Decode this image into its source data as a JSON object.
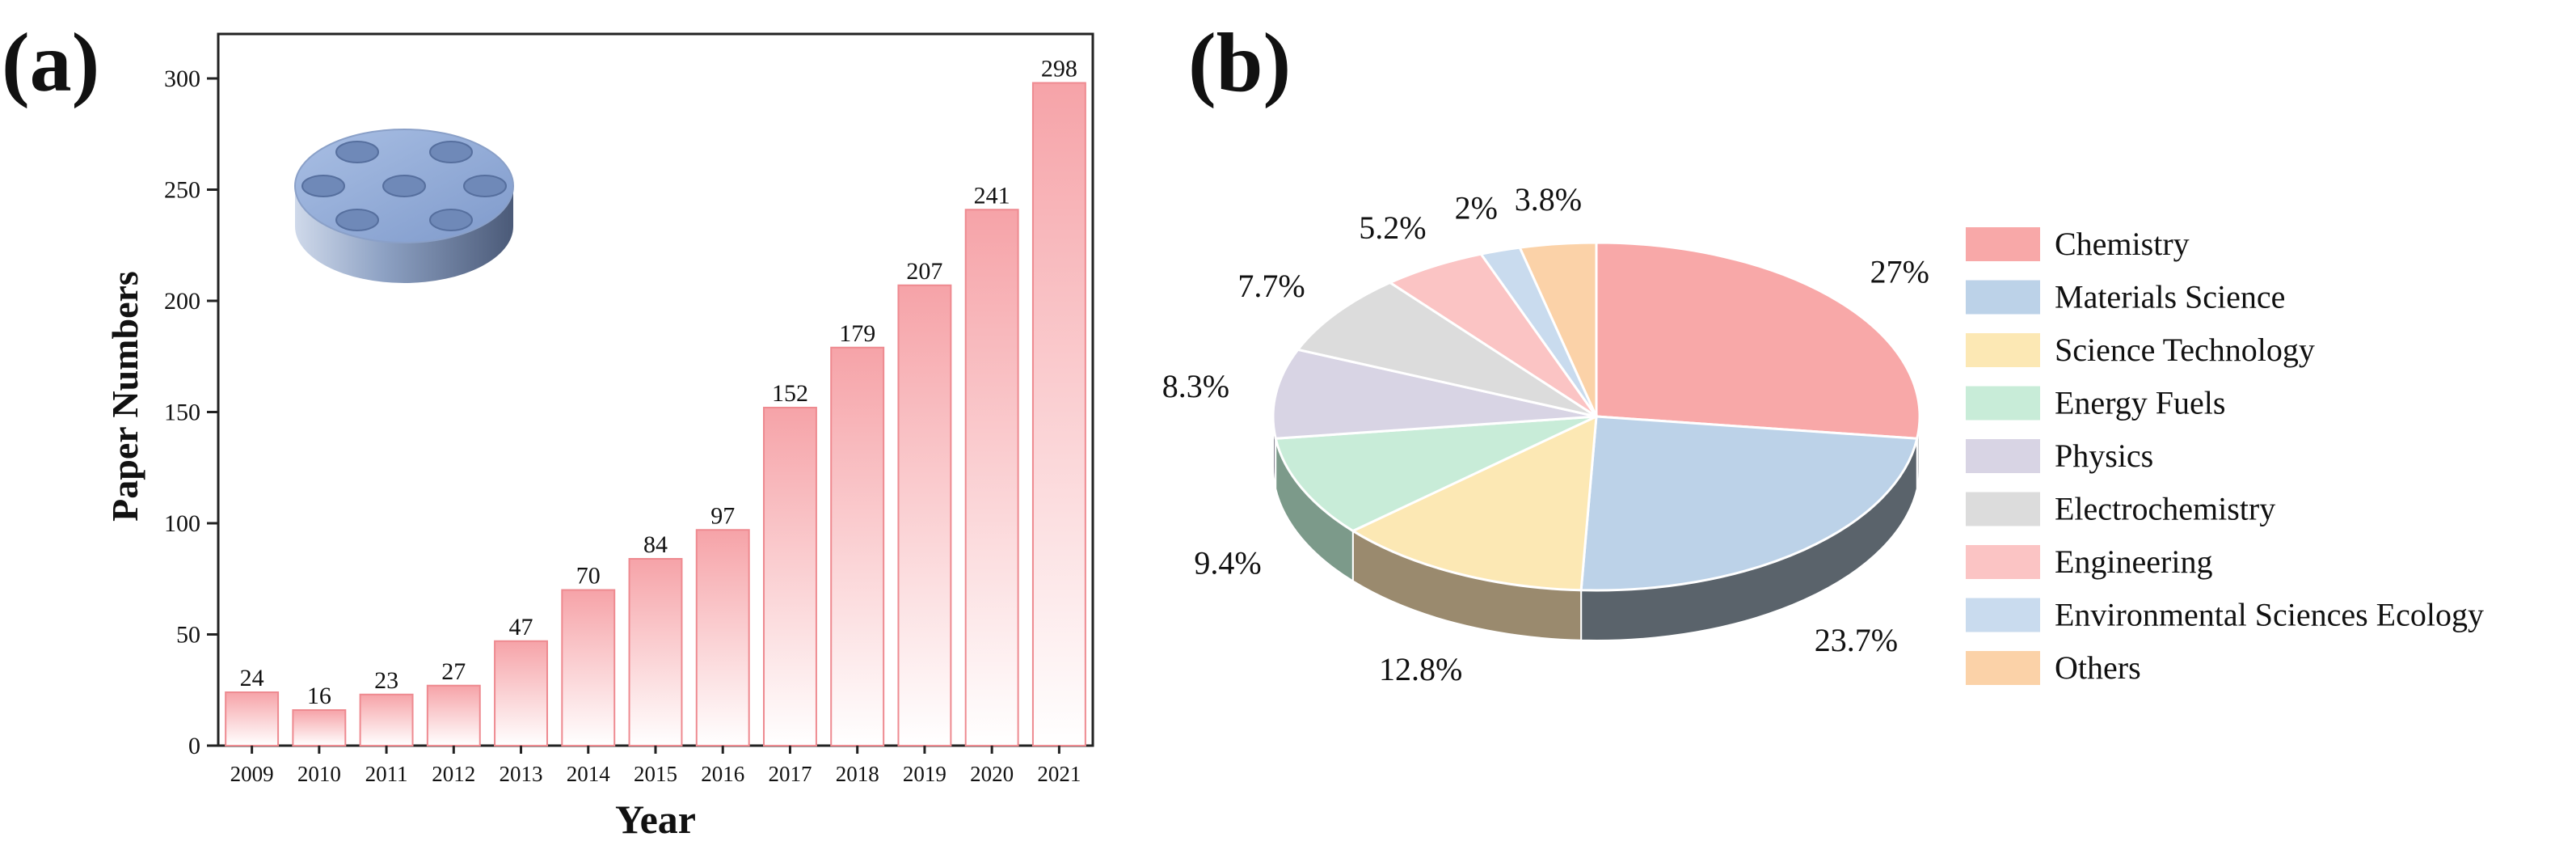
{
  "chart_data": [
    {
      "type": "bar",
      "panel_label": "(a)",
      "xlabel": "Year",
      "ylabel": "Paper Numbers",
      "ylim": [
        0,
        320
      ],
      "yticks": [
        0,
        50,
        100,
        150,
        200,
        250,
        300
      ],
      "categories": [
        "2009",
        "2010",
        "2011",
        "2012",
        "2013",
        "2014",
        "2015",
        "2016",
        "2017",
        "2018",
        "2019",
        "2020",
        "2021"
      ],
      "values": [
        24,
        16,
        23,
        27,
        47,
        70,
        84,
        97,
        152,
        179,
        207,
        241,
        298
      ],
      "bar_color_top": "#f6a3a8",
      "bar_color_bottom": "#ffffff",
      "bar_edge_color": "#ee8a90",
      "inset_icon": "perforated-disc-icon"
    },
    {
      "type": "pie",
      "panel_label": "(b)",
      "style": "3d",
      "slices": [
        {
          "label": "Chemistry",
          "value": 27,
          "value_label": "27%",
          "color": "#f8a8a8",
          "side_color": "#c7c9cc"
        },
        {
          "label": "Materials Science",
          "value": 23.7,
          "value_label": "23.7%",
          "color": "#bcd2e8",
          "side_color": "#5a636b"
        },
        {
          "label": "Science Technology",
          "value": 12.8,
          "value_label": "12.8%",
          "color": "#fce8b4",
          "side_color": "#9a8a6e"
        },
        {
          "label": "Energy Fuels",
          "value": 9.4,
          "value_label": "9.4%",
          "color": "#c8ecd8",
          "side_color": "#7c9a8a"
        },
        {
          "label": "Physics",
          "value": 8.3,
          "value_label": "8.3%",
          "color": "#d8d4e4",
          "side_color": "#8d8a98"
        },
        {
          "label": "Electrochemistry",
          "value": 7.7,
          "value_label": "7.7%",
          "color": "#dcdcdc",
          "side_color": "#8a8a8a"
        },
        {
          "label": "Engineering",
          "value": 5.2,
          "value_label": "5.2%",
          "color": "#fbc4c4",
          "side_color": "#a88282"
        },
        {
          "label": "Environmental Sciences Ecology",
          "value": 2,
          "value_label": "2%",
          "color": "#c9dbee",
          "side_color": "#8594a3"
        },
        {
          "label": "Others",
          "value": 3.8,
          "value_label": "3.8%",
          "color": "#fbd2a8",
          "side_color": "#a88c70"
        }
      ]
    }
  ]
}
